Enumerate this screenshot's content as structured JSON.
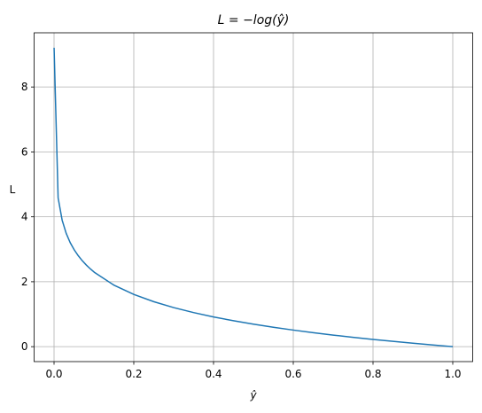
{
  "chart_data": {
    "type": "line",
    "title": "L = −log(ŷ)",
    "xlabel": "ŷ",
    "ylabel": "L",
    "x": [
      0.0001,
      0.0102,
      0.0203,
      0.0304,
      0.0405,
      0.0506,
      0.0607,
      0.0708,
      0.0809,
      0.091,
      0.1011,
      0.15,
      0.2,
      0.25,
      0.3,
      0.35,
      0.4,
      0.45,
      0.5,
      0.55,
      0.6,
      0.65,
      0.7,
      0.75,
      0.8,
      0.85,
      0.9,
      0.95,
      1.0
    ],
    "series": [
      {
        "color": "#1f77b4",
        "values": [
          9.21,
          4.585,
          3.897,
          3.493,
          3.206,
          2.984,
          2.802,
          2.648,
          2.515,
          2.397,
          2.292,
          1.897,
          1.609,
          1.386,
          1.204,
          1.05,
          0.916,
          0.799,
          0.693,
          0.598,
          0.511,
          0.431,
          0.357,
          0.288,
          0.223,
          0.163,
          0.105,
          0.051,
          0
        ]
      }
    ],
    "xlim": [
      -0.05,
      1.05
    ],
    "ylim": [
      -0.46,
      9.67
    ],
    "xticks": [
      {
        "value": 0,
        "label": "0.0"
      },
      0.2,
      0.4,
      0.6,
      0.8,
      {
        "value": 1,
        "label": "1.0"
      }
    ],
    "yticks": [
      0,
      2,
      4,
      6,
      8
    ],
    "grid": true
  }
}
